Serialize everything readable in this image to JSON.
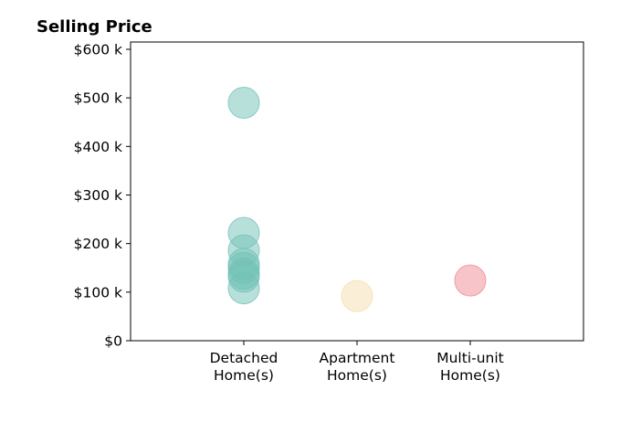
{
  "chart_data": {
    "type": "scatter",
    "title": "Selling Price",
    "xlabel": "",
    "ylabel": "",
    "categories": [
      [
        "Detached",
        "Home(s)"
      ],
      [
        "Apartment",
        "Home(s)"
      ],
      [
        "Multi-unit",
        "Home(s)"
      ]
    ],
    "ylim": [
      0,
      615000
    ],
    "y_ticks": [
      {
        "value": 0,
        "label": "$0"
      },
      {
        "value": 100000,
        "label": "$100 k"
      },
      {
        "value": 200000,
        "label": "$200 k"
      },
      {
        "value": 300000,
        "label": "$300 k"
      },
      {
        "value": 400000,
        "label": "$400 k"
      },
      {
        "value": 500000,
        "label": "$500 k"
      },
      {
        "value": 600000,
        "label": "$600 k"
      }
    ],
    "grid": false,
    "legend": "none",
    "points": [
      {
        "category": 0,
        "y": 490000
      },
      {
        "category": 0,
        "y": 222000
      },
      {
        "category": 0,
        "y": 186000
      },
      {
        "category": 0,
        "y": 158000
      },
      {
        "category": 0,
        "y": 150000
      },
      {
        "category": 0,
        "y": 138000
      },
      {
        "category": 0,
        "y": 132000
      },
      {
        "category": 0,
        "y": 108000
      },
      {
        "category": 1,
        "y": 92000
      },
      {
        "category": 2,
        "y": 124000
      }
    ],
    "colors": [
      "#72c2b6",
      "#f5ddaf",
      "#f08a94"
    ],
    "point_opacity": 0.5
  }
}
